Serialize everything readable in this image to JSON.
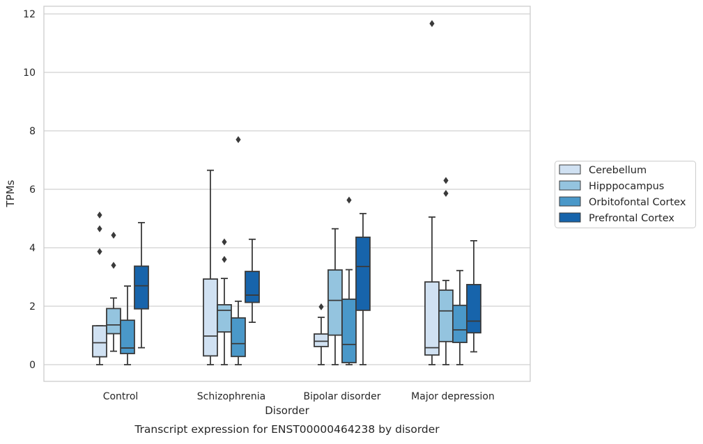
{
  "chart_data": {
    "type": "box",
    "title": "",
    "caption": "Transcript expression for ENST00000464238 by disorder",
    "xlabel": "Disorder",
    "ylabel": "TPMs",
    "ylim": [
      -0.55,
      12.25
    ],
    "yticks": [
      0,
      2,
      4,
      6,
      8,
      10,
      12
    ],
    "grid": true,
    "legend_position": "right",
    "categories": [
      "Control",
      "Schizophrenia",
      "Bipolar disorder",
      "Major depression"
    ],
    "series": [
      {
        "name": "Cerebellum",
        "color": "#d0e1f2",
        "boxes": [
          {
            "whisker_low": 0,
            "q1": 0.27,
            "median": 0.75,
            "q3": 1.33,
            "whisker_high": 1.33,
            "outliers": [
              3.87,
              4.65,
              5.12
            ]
          },
          {
            "whisker_low": 0,
            "q1": 0.3,
            "median": 0.98,
            "q3": 2.93,
            "whisker_high": 6.65,
            "outliers": []
          },
          {
            "whisker_low": 0,
            "q1": 0.62,
            "median": 0.8,
            "q3": 1.05,
            "whisker_high": 1.62,
            "outliers": [
              1.98
            ]
          },
          {
            "whisker_low": 0,
            "q1": 0.33,
            "median": 0.58,
            "q3": 2.83,
            "whisker_high": 5.05,
            "outliers": [
              11.67
            ]
          }
        ]
      },
      {
        "name": "Hipppocampus",
        "color": "#94c4df",
        "boxes": [
          {
            "whisker_low": 0.46,
            "q1": 1.06,
            "median": 1.36,
            "q3": 1.92,
            "whisker_high": 2.28,
            "outliers": [
              3.4,
              4.43
            ]
          },
          {
            "whisker_low": 0,
            "q1": 1.12,
            "median": 1.86,
            "q3": 2.05,
            "whisker_high": 2.95,
            "outliers": [
              3.6,
              4.2
            ]
          },
          {
            "whisker_low": 0,
            "q1": 1.01,
            "median": 2.2,
            "q3": 3.24,
            "whisker_high": 4.65,
            "outliers": []
          },
          {
            "whisker_low": 0,
            "q1": 0.79,
            "median": 1.84,
            "q3": 2.55,
            "whisker_high": 2.88,
            "outliers": [
              5.86,
              6.3
            ]
          }
        ]
      },
      {
        "name": "Orbitofontal Cortex",
        "color": "#4a98c9",
        "boxes": [
          {
            "whisker_low": 0,
            "q1": 0.38,
            "median": 0.57,
            "q3": 1.52,
            "whisker_high": 2.69,
            "outliers": []
          },
          {
            "whisker_low": 0,
            "q1": 0.28,
            "median": 0.72,
            "q3": 1.6,
            "whisker_high": 2.17,
            "outliers": [
              7.7
            ]
          },
          {
            "whisker_low": 0,
            "q1": 0.07,
            "median": 0.69,
            "q3": 2.24,
            "whisker_high": 3.25,
            "outliers": [
              5.63
            ]
          },
          {
            "whisker_low": 0,
            "q1": 0.76,
            "median": 1.19,
            "q3": 2.03,
            "whisker_high": 3.22,
            "outliers": []
          }
        ]
      },
      {
        "name": "Prefrontal Cortex",
        "color": "#1764ab",
        "boxes": [
          {
            "whisker_low": 0.58,
            "q1": 1.91,
            "median": 2.7,
            "q3": 3.37,
            "whisker_high": 4.86,
            "outliers": []
          },
          {
            "whisker_low": 1.45,
            "q1": 2.13,
            "median": 2.38,
            "q3": 3.19,
            "whisker_high": 4.29,
            "outliers": []
          },
          {
            "whisker_low": 0,
            "q1": 1.86,
            "median": 3.36,
            "q3": 4.36,
            "whisker_high": 5.17,
            "outliers": []
          },
          {
            "whisker_low": 0.44,
            "q1": 1.09,
            "median": 1.49,
            "q3": 2.74,
            "whisker_high": 4.24,
            "outliers": []
          }
        ]
      }
    ]
  }
}
